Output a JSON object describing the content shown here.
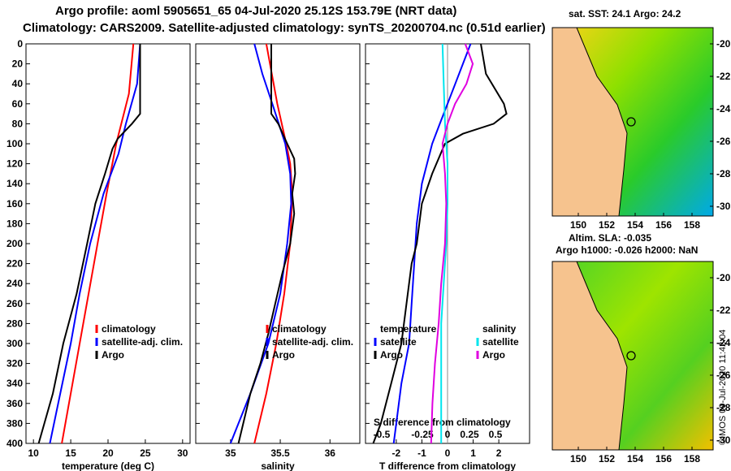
{
  "titles": {
    "line1": "Argo profile: aoml 5905651_65 04-Jul-2020 25.12S 153.79E (NRT data)",
    "line2": "Climatology: CARS2009. Satellite-adjusted climatology: synTS_20200704.nc (0.51d earlier)"
  },
  "maps": {
    "sst_title": "sat. SST: 24.1 Argo: 24.2",
    "sla_title": "Altim. SLA: -0.035",
    "h_title": "Argo h1000: -0.026 h2000: NaN",
    "lat_ticks": [
      "-20",
      "-22",
      "-24",
      "-26",
      "-28",
      "-30"
    ],
    "lon_ticks": [
      "150",
      "152",
      "154",
      "156",
      "158"
    ]
  },
  "credit": "©IMOS 09-Jul-2020 11:42:04",
  "colors": {
    "climatology": "#ff0000",
    "satellite": "#0000ff",
    "argo": "#000000",
    "sal_sat": "#00e5ee",
    "sal_argo": "#e000e0"
  },
  "legend_labels": {
    "climatology": "climatology",
    "satellite_adj": "satellite-adj. clim.",
    "argo": "Argo",
    "temperature": "temperature",
    "salinity": "salinity",
    "satellite": "satellite"
  },
  "chart_data": [
    {
      "type": "line",
      "xlabel": "temperature (deg C)",
      "ylabel": "",
      "xlim": [
        9,
        31
      ],
      "ylim": [
        400,
        0
      ],
      "xticks": [
        "10",
        "15",
        "20",
        "25",
        "30"
      ],
      "yticks": [
        "0",
        "20",
        "40",
        "60",
        "80",
        "100",
        "120",
        "140",
        "160",
        "180",
        "200",
        "220",
        "240",
        "260",
        "280",
        "300",
        "320",
        "340",
        "360",
        "380",
        "400"
      ],
      "series": [
        {
          "name": "climatology",
          "depth": [
            0,
            50,
            100,
            150,
            200,
            250,
            300,
            350,
            400
          ],
          "values": [
            23.4,
            22.8,
            21.1,
            19.8,
            18.6,
            17.4,
            16.2,
            15.0,
            13.8
          ]
        },
        {
          "name": "satellite-adj. clim.",
          "depth": [
            0,
            40,
            80,
            110,
            150,
            200,
            250,
            300,
            350,
            400
          ],
          "values": [
            24.3,
            23.9,
            22.4,
            21.4,
            19.4,
            17.6,
            16.2,
            15.0,
            13.6,
            12.2
          ]
        },
        {
          "name": "Argo",
          "depth": [
            0,
            70,
            80,
            95,
            105,
            130,
            160,
            200,
            250,
            300,
            350,
            400
          ],
          "values": [
            24.3,
            24.3,
            23.2,
            21.3,
            20.6,
            19.6,
            18.3,
            17.2,
            15.8,
            14.0,
            12.6,
            10.7
          ]
        }
      ]
    },
    {
      "type": "line",
      "xlabel": "salinity",
      "ylabel": "",
      "xlim": [
        34.65,
        36.3
      ],
      "ylim": [
        400,
        0
      ],
      "xticks": [
        "35",
        "35.5",
        "36"
      ],
      "series": [
        {
          "name": "climatology",
          "depth": [
            0,
            60,
            100,
            120,
            150,
            200,
            250,
            300,
            350,
            400
          ],
          "values": [
            35.36,
            35.47,
            35.56,
            35.6,
            35.62,
            35.6,
            35.54,
            35.46,
            35.36,
            35.24
          ]
        },
        {
          "name": "satellite-adj. clim.",
          "depth": [
            0,
            30,
            60,
            100,
            130,
            160,
            200,
            250,
            300,
            350,
            400
          ],
          "values": [
            35.24,
            35.32,
            35.42,
            35.55,
            35.6,
            35.61,
            35.57,
            35.5,
            35.38,
            35.2,
            35.0
          ]
        },
        {
          "name": "Argo",
          "depth": [
            0,
            70,
            80,
            100,
            115,
            130,
            150,
            170,
            200,
            230,
            260,
            290,
            320,
            350,
            400
          ],
          "values": [
            35.41,
            35.41,
            35.48,
            35.57,
            35.64,
            35.65,
            35.62,
            35.64,
            35.6,
            35.52,
            35.45,
            35.38,
            35.3,
            35.2,
            35.08
          ]
        }
      ]
    },
    {
      "type": "line",
      "xlabel": "T difference from climatology",
      "xlabel2": "S difference from climatology",
      "xlim": [
        -3.2,
        3.2
      ],
      "ylim": [
        400,
        0
      ],
      "xticks": [
        "-2",
        "-1",
        "0",
        "1",
        "2"
      ],
      "xticks_top": [
        "-0.5",
        "-0.25",
        "0",
        "0.25",
        "0.5"
      ],
      "series": [
        {
          "name": "temperature satellite",
          "depth": [
            0,
            40,
            80,
            100,
            140,
            180,
            220,
            260,
            300,
            340,
            380,
            400
          ],
          "values": [
            0.9,
            0.3,
            -0.3,
            -0.6,
            -1.0,
            -1.2,
            -1.3,
            -1.4,
            -1.5,
            -1.8,
            -2.0,
            -2.1
          ]
        },
        {
          "name": "temperature Argo",
          "depth": [
            0,
            30,
            60,
            70,
            80,
            90,
            100,
            130,
            160,
            200,
            220,
            260,
            300,
            340,
            380,
            400
          ],
          "values": [
            1.3,
            1.5,
            2.2,
            2.3,
            1.8,
            0.6,
            -0.1,
            -0.6,
            -1.0,
            -1.2,
            -1.4,
            -1.6,
            -1.8,
            -2.2,
            -2.6,
            -2.9
          ]
        },
        {
          "name": "salinity satellite",
          "depth": [
            0,
            40,
            80,
            120,
            160,
            200,
            240,
            280,
            320,
            360,
            400
          ],
          "values": [
            -0.04,
            -0.03,
            -0.02,
            0.0,
            0.0,
            -0.01,
            -0.03,
            -0.05,
            -0.05,
            -0.05,
            -0.05
          ]
        },
        {
          "name": "salinity Argo",
          "depth": [
            0,
            20,
            40,
            60,
            80,
            100,
            130,
            160,
            200,
            240,
            280,
            320,
            360,
            400
          ],
          "values": [
            0.14,
            0.2,
            0.15,
            0.06,
            0.0,
            -0.04,
            -0.02,
            -0.01,
            -0.02,
            -0.05,
            -0.07,
            -0.1,
            -0.12,
            -0.13
          ]
        }
      ]
    }
  ]
}
